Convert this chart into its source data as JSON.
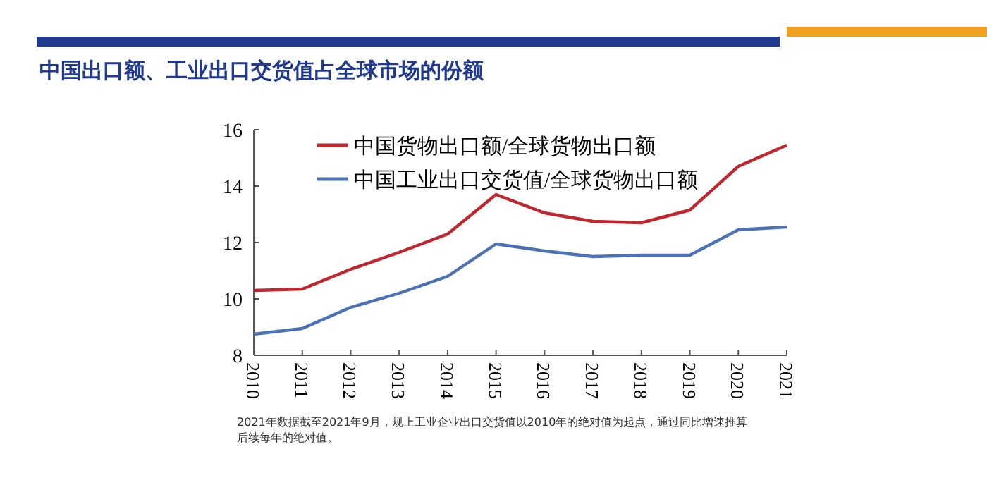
{
  "chart_data": {
    "type": "line",
    "title": "中国出口额、工业出口交货值占全球市场的份额",
    "categories": [
      "2010",
      "2011",
      "2012",
      "2013",
      "2014",
      "2015",
      "2016",
      "2017",
      "2018",
      "2019",
      "2020",
      "2021"
    ],
    "series": [
      {
        "name": "中国货物出口额/全球货物出口额",
        "color": "#c0262d",
        "values": [
          10.3,
          10.35,
          11.05,
          11.65,
          12.3,
          13.7,
          13.05,
          12.75,
          12.7,
          13.15,
          14.7,
          15.45
        ]
      },
      {
        "name": "中国工业出口交货值/全球货物出口额",
        "color": "#4a72b5",
        "values": [
          8.75,
          8.95,
          9.7,
          10.2,
          10.8,
          11.95,
          11.7,
          11.5,
          11.55,
          11.55,
          12.45,
          12.55
        ]
      }
    ],
    "ylim": [
      8,
      16
    ],
    "yticks": [
      8,
      10,
      12,
      14,
      16
    ],
    "grid": false,
    "legend": "top left",
    "marker": "none",
    "line_style": "solid",
    "annotations": [
      "2021年数据截至2021年9月，规上工业企业出口交货值以2010年的绝对值为起点，通过同比增速推算",
      "后续每年的绝对值。"
    ]
  }
}
